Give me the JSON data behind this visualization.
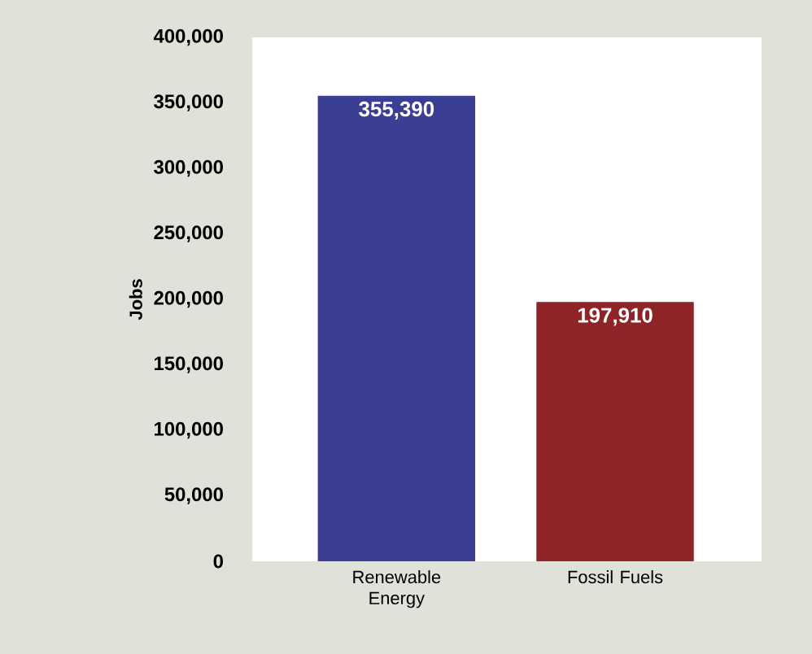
{
  "chart_data": {
    "type": "bar",
    "ylabel": "Jobs",
    "categories": [
      "Renewable Energy",
      "Fossil Fuels"
    ],
    "values": [
      355390,
      197910
    ],
    "colors": [
      "#3a3f94",
      "#8e2328"
    ],
    "value_labels": [
      "355,390",
      "197,910"
    ],
    "ylim": [
      0,
      400000
    ],
    "yticks": [
      {
        "value": 0,
        "label": "0"
      },
      {
        "value": 50000,
        "label": "50,000"
      },
      {
        "value": 100000,
        "label": "100,000"
      },
      {
        "value": 150000,
        "label": "150,000"
      },
      {
        "value": 200000,
        "label": "200,000"
      },
      {
        "value": 250000,
        "label": "250,000"
      },
      {
        "value": 300000,
        "label": "300,000"
      },
      {
        "value": 350000,
        "label": "350,000"
      },
      {
        "value": 400000,
        "label": "400,000"
      }
    ],
    "grid": false
  }
}
